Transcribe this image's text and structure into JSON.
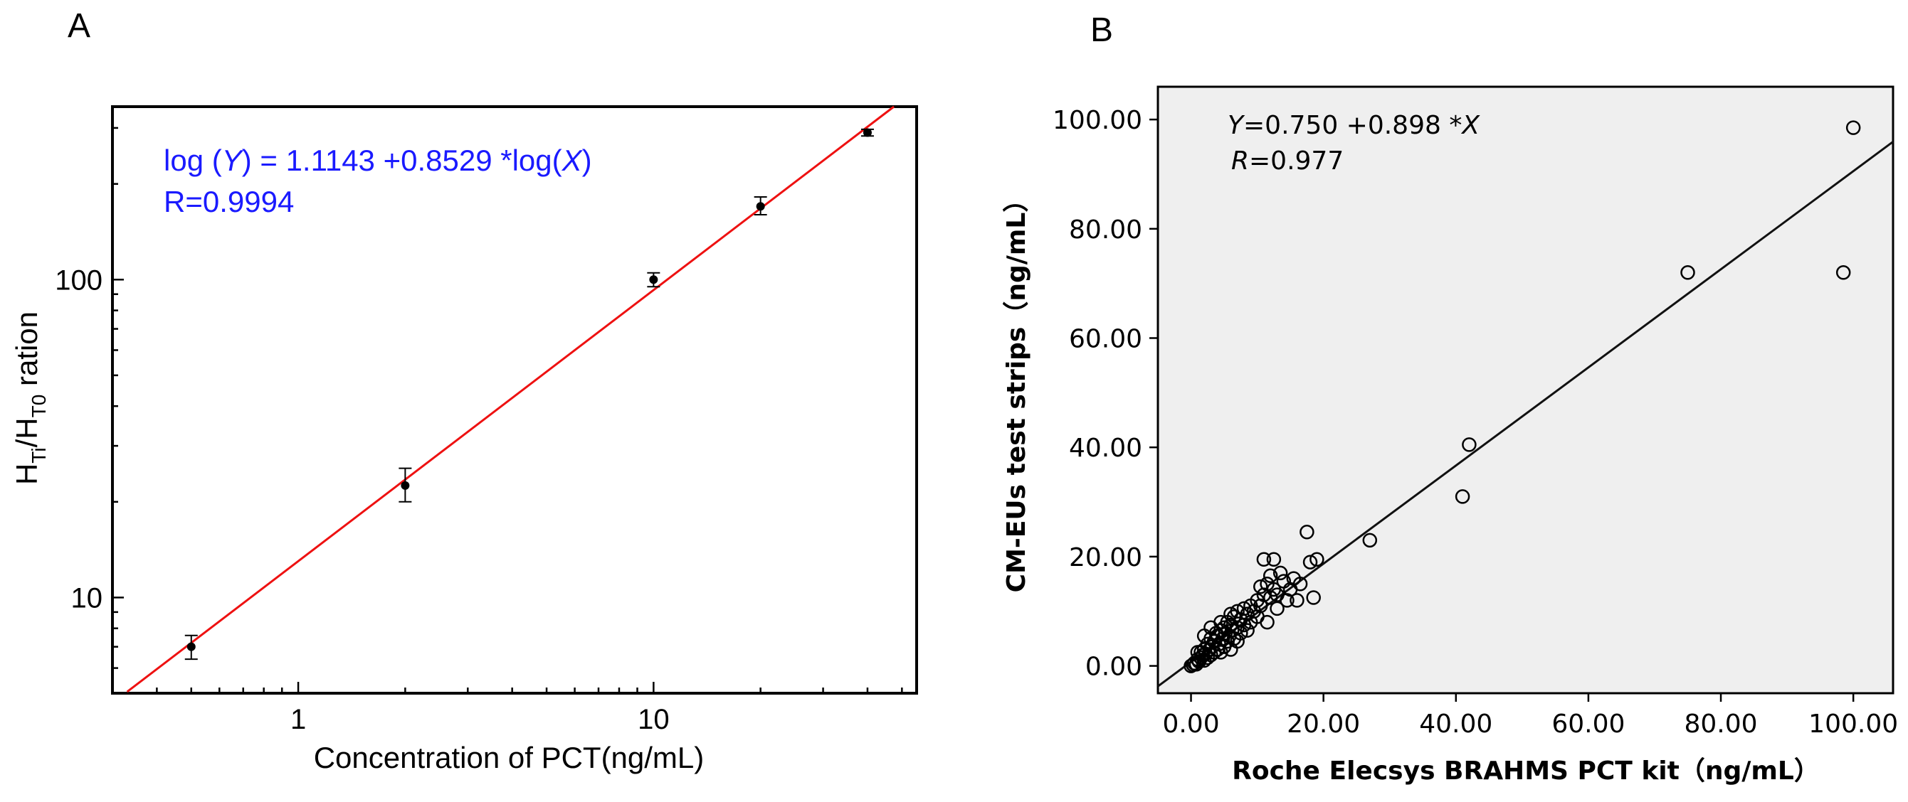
{
  "chart_data": [
    {
      "panel": "A",
      "type": "scatter",
      "xscale": "log",
      "yscale": "log",
      "xlabel": "Concentration of PCT(ng/mL)",
      "ylabel": {
        "main": "H",
        "sub1": "Ti",
        "slash": "/H",
        "sub2": "T0",
        "rest": " ration"
      },
      "xlim": [
        0.3,
        55
      ],
      "ylim": [
        5,
        350
      ],
      "xticks": [
        {
          "v": 1,
          "label": "1"
        },
        {
          "v": 10,
          "label": "10"
        }
      ],
      "yticks": [
        {
          "v": 10,
          "label": "10"
        },
        {
          "v": 100,
          "label": "100"
        }
      ],
      "points": [
        {
          "x": 0.5,
          "y": 7.0,
          "err_low": 6.4,
          "err_high": 7.6
        },
        {
          "x": 2,
          "y": 22.5,
          "err_low": 20.0,
          "err_high": 25.5
        },
        {
          "x": 10,
          "y": 100,
          "err_low": 95,
          "err_high": 105
        },
        {
          "x": 20,
          "y": 170,
          "err_low": 160,
          "err_high": 182
        },
        {
          "x": 40,
          "y": 290,
          "err_low": 283,
          "err_high": 297
        }
      ],
      "fit": {
        "intercept": 1.1143,
        "slope": 0.8529,
        "color": "#ee1111"
      },
      "equation": {
        "l1_pre": "log (",
        "l1_y": "Y",
        "l1_mid": ") = 1.1143 +0.8529 *log(",
        "l1_x": "X",
        "l1_end": ")",
        "l2": "R=0.9994"
      },
      "equation_color": "#1a1aff"
    },
    {
      "panel": "B",
      "type": "scatter",
      "xlabel": "Roche Elecsys BRAHMS PCT kit（ng/mL）",
      "ylabel": "CM-EUs test strips（ng/mL）",
      "xlim": [
        -5,
        106
      ],
      "ylim": [
        -5,
        106
      ],
      "xticks": [
        0,
        20,
        40,
        60,
        80,
        100
      ],
      "yticks": [
        0,
        20,
        40,
        60,
        80,
        100
      ],
      "tick_labels": [
        "0.00",
        "20.00",
        "40.00",
        "60.00",
        "80.00",
        "100.00"
      ],
      "background": "#efefef",
      "fit": {
        "intercept": 0.75,
        "slope": 0.898
      },
      "equation": {
        "l1_y": "Y",
        "l1_rest": "=0.750 +0.898 *",
        "l1_x": "X",
        "l2_r": "R",
        "l2_rest": "=0.977"
      },
      "points": [
        [
          0,
          0
        ],
        [
          0.3,
          0.2
        ],
        [
          0.5,
          0.5
        ],
        [
          0.8,
          0.3
        ],
        [
          1.0,
          1.2
        ],
        [
          1.2,
          0.8
        ],
        [
          1.5,
          1.5
        ],
        [
          1.5,
          2.5
        ],
        [
          1.8,
          2.0
        ],
        [
          2.0,
          1.0
        ],
        [
          2.0,
          3.0
        ],
        [
          2.2,
          2.2
        ],
        [
          2.5,
          1.5
        ],
        [
          2.5,
          4.0
        ],
        [
          2.8,
          3.0
        ],
        [
          3.0,
          2.0
        ],
        [
          3.0,
          5.0
        ],
        [
          3.2,
          3.5
        ],
        [
          3.5,
          2.5
        ],
        [
          3.5,
          4.5
        ],
        [
          3.8,
          6.0
        ],
        [
          4.0,
          3.0
        ],
        [
          4.0,
          5.5
        ],
        [
          4.2,
          4.0
        ],
        [
          4.5,
          6.5
        ],
        [
          4.5,
          2.5
        ],
        [
          4.8,
          5.0
        ],
        [
          5.0,
          3.5
        ],
        [
          5.0,
          7.0
        ],
        [
          5.2,
          6.0
        ],
        [
          5.5,
          4.5
        ],
        [
          5.5,
          8.0
        ],
        [
          5.8,
          5.5
        ],
        [
          6.0,
          3.0
        ],
        [
          6.0,
          7.5
        ],
        [
          6.2,
          6.5
        ],
        [
          6.5,
          9.0
        ],
        [
          6.5,
          5.0
        ],
        [
          7.0,
          10.0
        ],
        [
          7.0,
          7.0
        ],
        [
          7.5,
          6.0
        ],
        [
          7.5,
          8.5
        ],
        [
          8.0,
          10.5
        ],
        [
          8.0,
          7.5
        ],
        [
          8.5,
          9.5
        ],
        [
          9.0,
          8.0
        ],
        [
          9.0,
          11.0
        ],
        [
          9.5,
          10.0
        ],
        [
          10.0,
          12.0
        ],
        [
          10.0,
          9.0
        ],
        [
          10.5,
          14.5
        ],
        [
          10.5,
          11.0
        ],
        [
          11.0,
          13.0
        ],
        [
          11.0,
          19.5
        ],
        [
          11.5,
          8.0
        ],
        [
          11.5,
          15.0
        ],
        [
          12.0,
          12.5
        ],
        [
          12.0,
          16.5
        ],
        [
          12.5,
          14.0
        ],
        [
          12.5,
          19.5
        ],
        [
          13.0,
          13.0
        ],
        [
          13.5,
          17.0
        ],
        [
          14.0,
          15.5
        ],
        [
          14.5,
          12.0
        ],
        [
          15.0,
          14.0
        ],
        [
          15.5,
          16.0
        ],
        [
          16.0,
          12.0
        ],
        [
          16.5,
          15.0
        ],
        [
          17.5,
          24.5
        ],
        [
          18.0,
          19.0
        ],
        [
          18.5,
          12.5
        ],
        [
          19.0,
          19.5
        ],
        [
          27.0,
          23.0
        ],
        [
          41.0,
          31.0
        ],
        [
          42.0,
          40.5
        ],
        [
          75.0,
          72.0
        ],
        [
          98.5,
          72.0
        ],
        [
          100.0,
          98.5
        ],
        [
          2.0,
          5.5
        ],
        [
          1.0,
          2.5
        ],
        [
          3.0,
          7.0
        ],
        [
          4.5,
          8.0
        ],
        [
          6.0,
          9.5
        ],
        [
          7.0,
          4.5
        ],
        [
          8.5,
          6.5
        ],
        [
          13.0,
          10.5
        ]
      ]
    }
  ],
  "panels": {
    "a_letter": "A",
    "b_letter": "B"
  }
}
